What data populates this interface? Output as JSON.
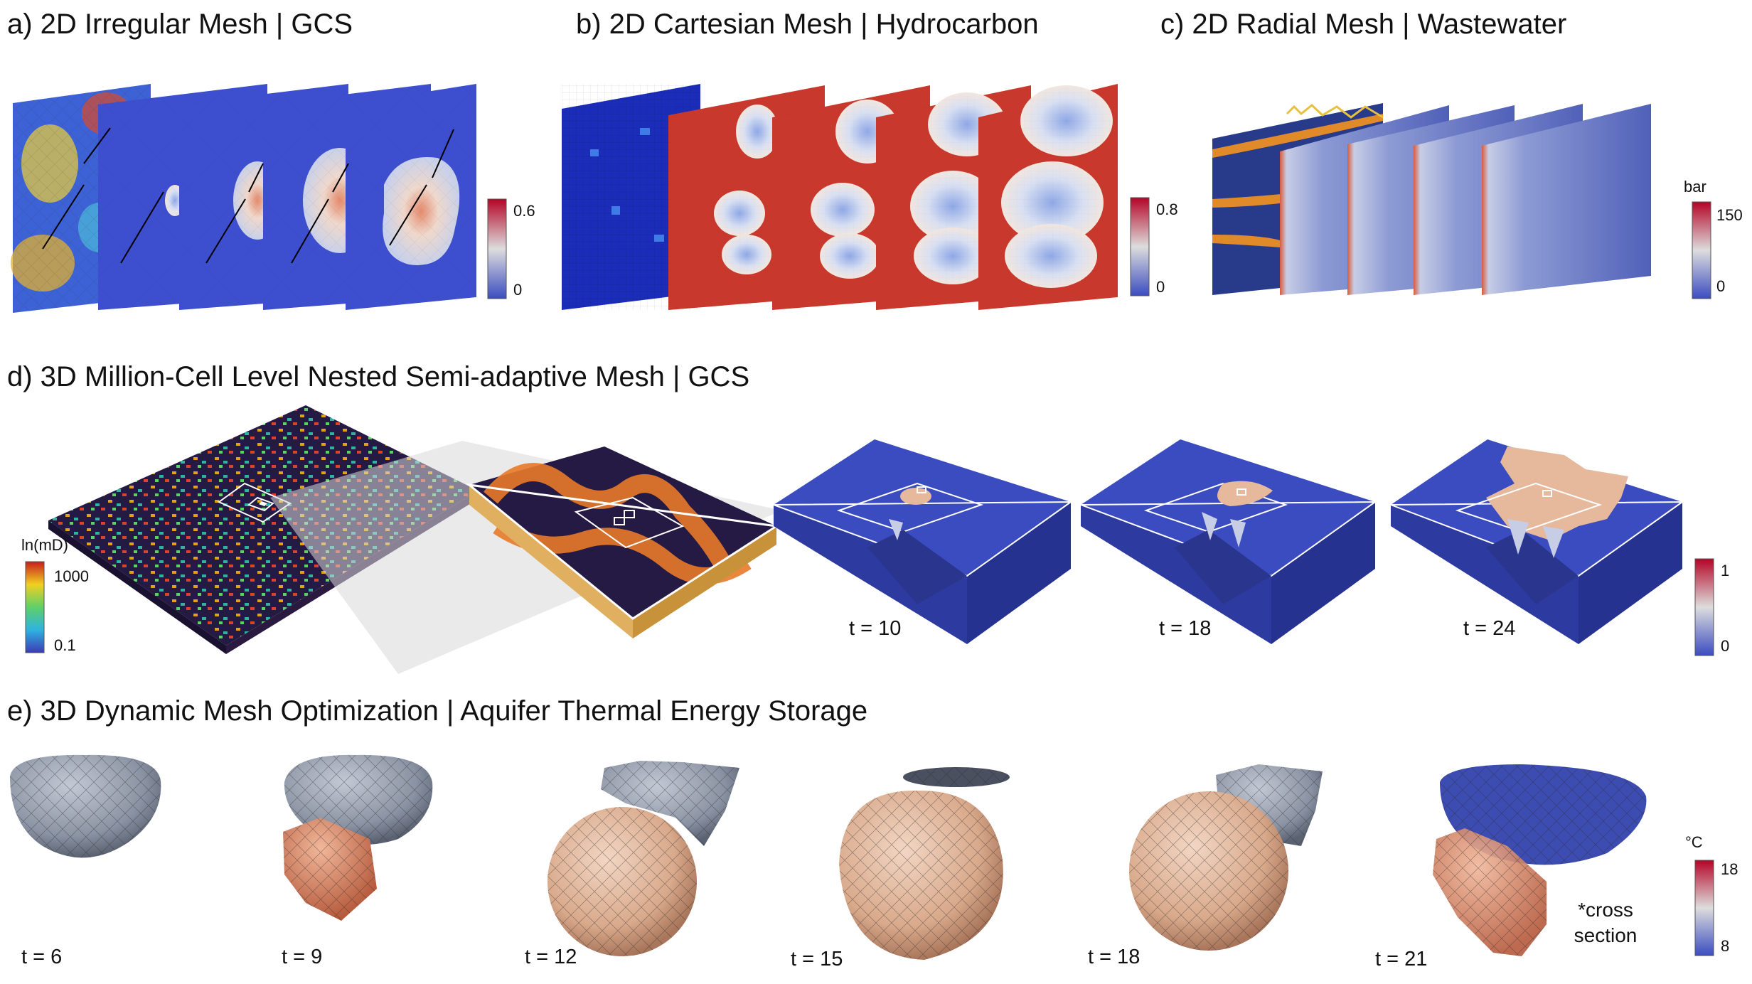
{
  "panels": {
    "a": {
      "title": "a) 2D Irregular Mesh | GCS",
      "colorbar": {
        "max": "0.6",
        "min": "0"
      }
    },
    "b": {
      "title": "b) 2D Cartesian Mesh | Hydrocarbon",
      "colorbar": {
        "max": "0.8",
        "min": "0"
      }
    },
    "c": {
      "title": "c) 2D Radial Mesh | Wastewater",
      "colorbar": {
        "unit": "bar",
        "max": "150",
        "min": "0"
      }
    },
    "d": {
      "title": "d) 3D Million-Cell Level Nested Semi-adaptive Mesh | GCS",
      "perm_colorbar": {
        "unit": "ln(mD)",
        "max": "1000",
        "min": "0.1"
      },
      "sat_colorbar": {
        "max": "1",
        "min": "0"
      },
      "times": [
        "t = 10",
        "t = 18",
        "t = 24"
      ]
    },
    "e": {
      "title": "e) 3D Dynamic Mesh Optimization | Aquifer Thermal Energy Storage",
      "colorbar": {
        "unit": "°C",
        "max": "18",
        "min": "8"
      },
      "times": [
        "t = 6",
        "t = 9",
        "t = 12",
        "t = 15",
        "t = 18",
        "t = 21"
      ],
      "note": "*cross section"
    }
  },
  "colors": {
    "deep_blue": "#3b4cc0",
    "mid_blue": "#4a5fc1",
    "red": "#cc3128",
    "peach": "#e6b89c",
    "grey_mesh": "#8c94a3",
    "dark_navy": "#1d1f4a"
  }
}
